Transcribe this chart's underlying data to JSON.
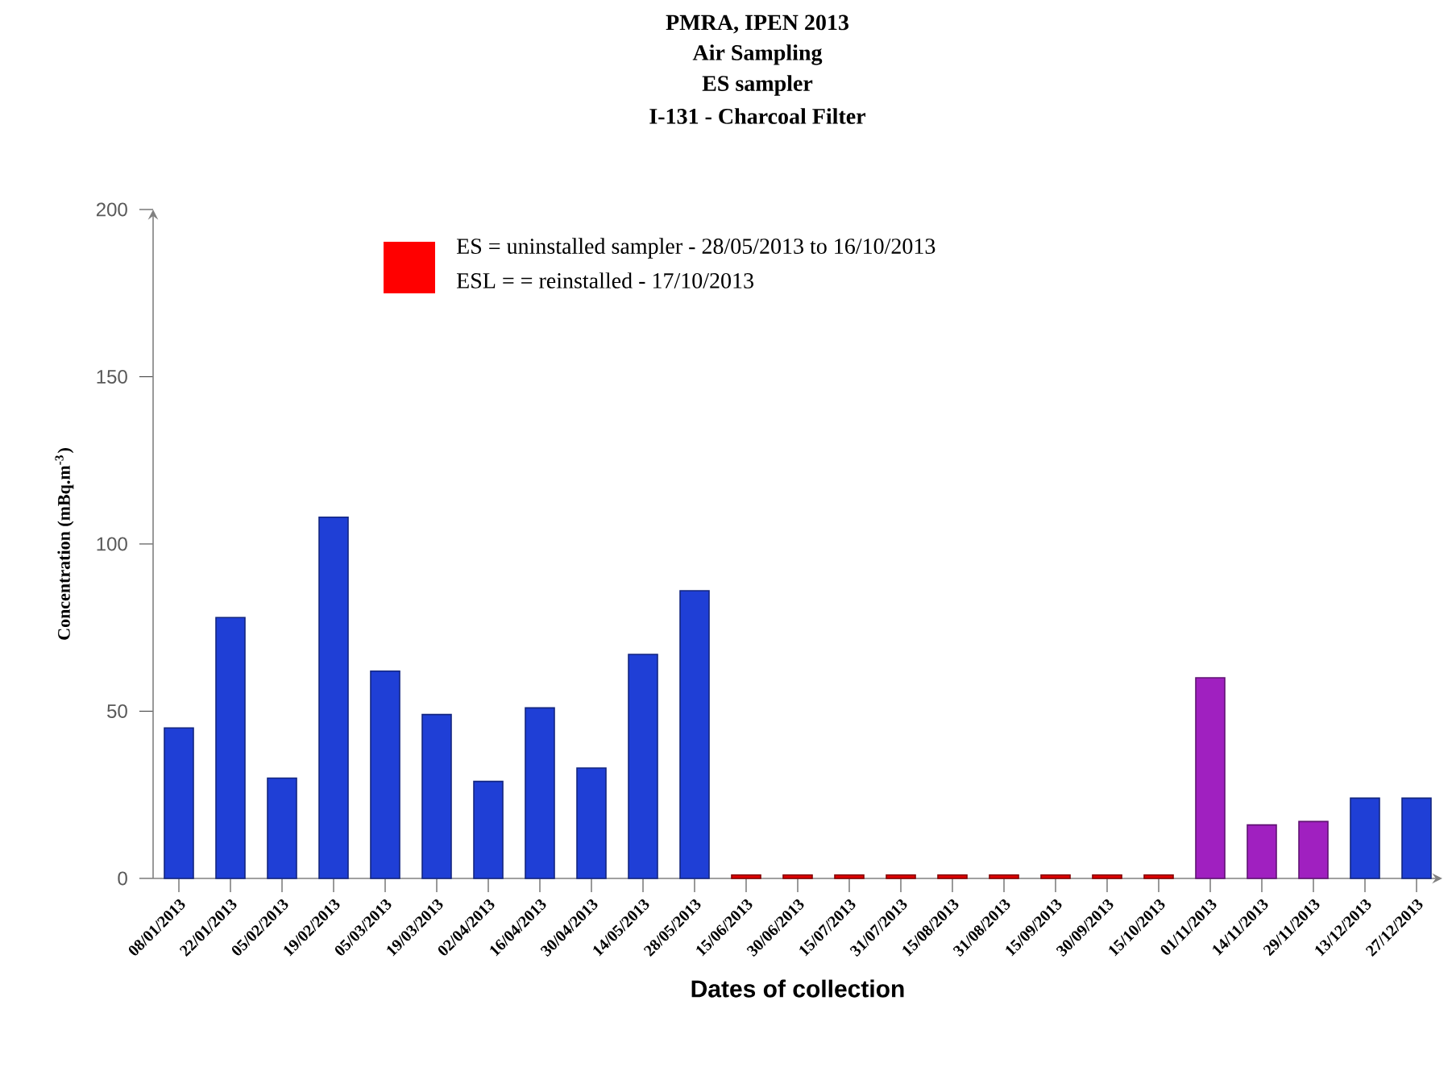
{
  "chart_data": {
    "type": "bar",
    "title": "PMRA, IPEN 2013",
    "subtitle": "Air Sampling",
    "xlabel": "Dates of collection",
    "ylabel": "Concentration  (mBq.m$^{-3}$)",
    "categories": [
      "08/01/2013",
      "22/01/2013",
      "05/02/2013",
      "19/02/2013",
      "05/03/2013",
      "19/03/2013",
      "02/04/2013",
      "16/04/2013",
      "30/04/2013",
      "14/05/2013",
      "28/05/2013",
      "15/06/2013",
      "30/06/2013",
      "15/07/2013",
      "31/07/2013",
      "15/08/2013",
      "31/08/2013",
      "15/09/2013",
      "30/09/2013",
      "15/10/2013",
      "01/11/2013",
      "14/11/2013",
      "29/11/2013",
      "13/12/2013",
      "27/12/2013"
    ],
    "values": [
      45,
      78,
      30,
      108,
      62,
      49,
      29,
      51,
      33,
      67,
      86,
      1,
      1,
      1,
      1,
      1,
      1,
      1,
      1,
      1,
      60,
      16,
      17,
      24,
      24
    ],
    "colors": [
      "#1f3fd6",
      "#1f3fd6",
      "#1f3fd6",
      "#1f3fd6",
      "#1f3fd6",
      "#1f3fd6",
      "#1f3fd6",
      "#1f3fd6",
      "#1f3fd6",
      "#1f3fd6",
      "#1f3fd6",
      "#e00000",
      "#e00000",
      "#e00000",
      "#e00000",
      "#e00000",
      "#e00000",
      "#e00000",
      "#e00000",
      "#e00000",
      "#a020c0",
      "#a020c0",
      "#a020c0",
      "#1f3fd6",
      "#1f3fd6"
    ],
    "ylim": [
      0,
      200
    ],
    "yticks": [
      0,
      50,
      100,
      150,
      200
    ],
    "grid": false,
    "annotations": [
      "ES sampler",
      "I-131 - Charcoal Filter",
      "ES  = uninstalled  sampler - 28/05/2013  to 16/10/2013",
      "ESL = = reinstalled - 17/10/2013"
    ]
  }
}
